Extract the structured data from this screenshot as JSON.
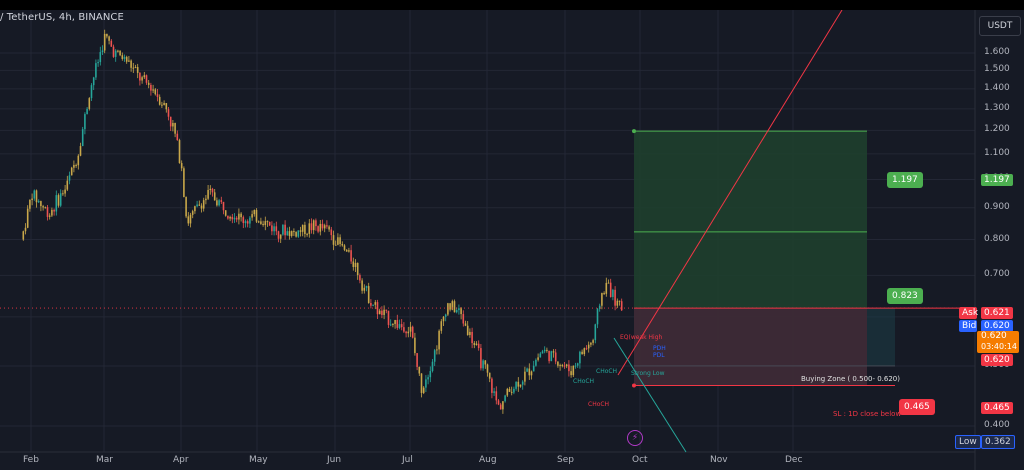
{
  "header": {
    "title": "/ TetherUS, 4h, BINANCE",
    "currency": "USDT"
  },
  "chart_data": {
    "type": "candlestick",
    "y_axis": {
      "scale": "log",
      "ticks": [
        "1.600",
        "1.500",
        "1.400",
        "1.300",
        "1.200",
        "1.100",
        "1.000",
        "0.900",
        "0.800",
        "0.700",
        "0.600",
        "0.500",
        "0.400"
      ],
      "position": "right"
    },
    "x_axis": {
      "ticks": [
        "Feb",
        "Mar",
        "Apr",
        "May",
        "Jun",
        "Jul",
        "Aug",
        "Sep",
        "Oct",
        "Nov",
        "Dec"
      ]
    },
    "grid": true,
    "price_series": [
      [
        "Jan 27",
        0.8
      ],
      [
        "Feb 1",
        0.95
      ],
      [
        "Feb 8",
        0.88
      ],
      [
        "Feb 15",
        0.97
      ],
      [
        "Feb 20",
        1.1
      ],
      [
        "Feb 25",
        1.4
      ],
      [
        "Mar 1",
        1.7
      ],
      [
        "Mar 5",
        1.6
      ],
      [
        "Mar 10",
        1.55
      ],
      [
        "Mar 15",
        1.45
      ],
      [
        "Mar 20",
        1.4
      ],
      [
        "Mar 25",
        1.3
      ],
      [
        "Mar 28",
        1.2
      ],
      [
        "Apr 1",
        1.05
      ],
      [
        "Apr 3",
        0.85
      ],
      [
        "Apr 7",
        0.9
      ],
      [
        "Apr 12",
        0.95
      ],
      [
        "Apr 18",
        0.9
      ],
      [
        "Apr 25",
        0.86
      ],
      [
        "May 1",
        0.87
      ],
      [
        "May 8",
        0.83
      ],
      [
        "May 15",
        0.82
      ],
      [
        "May 22",
        0.84
      ],
      [
        "May 28",
        0.83
      ],
      [
        "Jun 3",
        0.78
      ],
      [
        "Jun 8",
        0.74
      ],
      [
        "Jun 13",
        0.66
      ],
      [
        "Jun 18",
        0.61
      ],
      [
        "Jun 24",
        0.59
      ],
      [
        "Jul 1",
        0.57
      ],
      [
        "Jul 5",
        0.46
      ],
      [
        "Jul 10",
        0.52
      ],
      [
        "Jul 15",
        0.63
      ],
      [
        "Jul 20",
        0.61
      ],
      [
        "Jul 25",
        0.55
      ],
      [
        "Aug 1",
        0.48
      ],
      [
        "Aug 5",
        0.43
      ],
      [
        "Aug 10",
        0.46
      ],
      [
        "Aug 15",
        0.48
      ],
      [
        "Aug 22",
        0.53
      ],
      [
        "Aug 28",
        0.51
      ],
      [
        "Sep 3",
        0.49
      ],
      [
        "Sep 8",
        0.53
      ],
      [
        "Sep 12",
        0.55
      ],
      [
        "Sep 15",
        0.65
      ],
      [
        "Sep 18",
        0.68
      ],
      [
        "Sep 21",
        0.63
      ],
      [
        "Sep 24",
        0.62
      ]
    ],
    "current_price": {
      "value": "0.620",
      "countdown": "03:40:14"
    },
    "ask": {
      "label": "Ask",
      "value": "0.621"
    },
    "bid": {
      "label": "Bid",
      "value": "0.620"
    },
    "low": {
      "label": "Low",
      "value": "0.362"
    },
    "levels": {
      "tp2": "1.197",
      "tp1": "0.823",
      "entry": "0.620",
      "stop": "0.465"
    },
    "annotations": {
      "buying_zone": "Buying Zone ( 0.500- 0.620)",
      "stop_loss": "SL : 1D close below",
      "equal_high": "EQ(weak High",
      "pdh": "PDH",
      "pdl": "PDL",
      "choch1": "CHoCH",
      "choch2": "CHoCH",
      "strong_low": "Strong Low",
      "weak_hh": "CHoCH"
    },
    "colors": {
      "background": "#161a25",
      "up": "#26a69a",
      "down": "#ef5350",
      "candle_mixed": "#c9a84a",
      "target_zone": "#1e3f2e",
      "stop_zone": "#3d2a36",
      "target_label": "#4caf50",
      "stop_label": "#f23645",
      "bid_label": "#2962ff",
      "current_label": "#f57c00",
      "trend_line": "#f23645",
      "projection_line": "#26a69a",
      "lightning": "#b039c7"
    }
  }
}
